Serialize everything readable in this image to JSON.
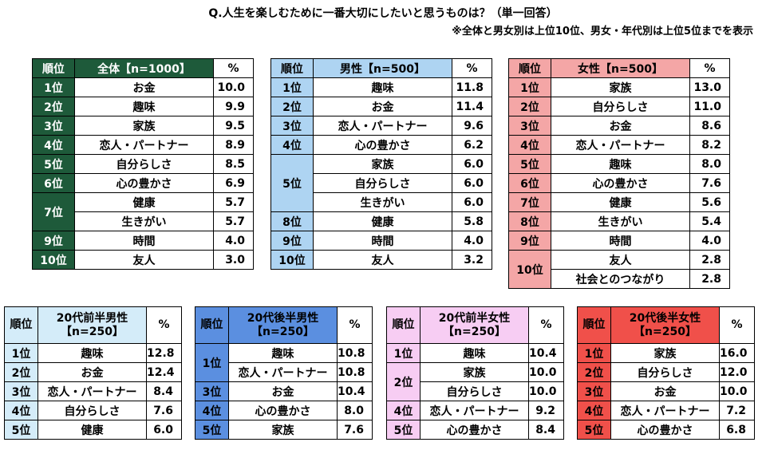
{
  "title": "Q.人生を楽しむために一番大切にしたいと思うものは？（単一回答）",
  "note": "※全体と男女別は上位10位、男女・年代別は上位5位までを表示",
  "rank_header": "順位",
  "pct_header": "%",
  "tables": {
    "all": {
      "header": "全体【n=1000】",
      "colors": {
        "head": "#1e5a3a",
        "rank": "#1e5a3a",
        "head_text": "#ffffff"
      },
      "rows": [
        {
          "rank": "1位",
          "item": "お金",
          "value": "10.0"
        },
        {
          "rank": "2位",
          "item": "趣味",
          "value": "9.9"
        },
        {
          "rank": "3位",
          "item": "家族",
          "value": "9.5"
        },
        {
          "rank": "4位",
          "item": "恋人・パートナー",
          "value": "8.9"
        },
        {
          "rank": "5位",
          "item": "自分らしさ",
          "value": "8.5"
        },
        {
          "rank": "6位",
          "item": "心の豊かさ",
          "value": "6.9"
        },
        {
          "rank": "7位",
          "item": "健康",
          "value": "5.7"
        },
        {
          "rank": "",
          "item": "生きがい",
          "value": "5.7"
        },
        {
          "rank": "9位",
          "item": "時間",
          "value": "4.0"
        },
        {
          "rank": "10位",
          "item": "友人",
          "value": "3.0"
        }
      ]
    },
    "male": {
      "header": "男性【n=500】",
      "colors": {
        "head": "#aed4f2",
        "rank": "#aed4f2",
        "head_text": "#000000"
      },
      "rows": [
        {
          "rank": "1位",
          "item": "趣味",
          "value": "11.8"
        },
        {
          "rank": "2位",
          "item": "お金",
          "value": "11.4"
        },
        {
          "rank": "3位",
          "item": "恋人・パートナー",
          "value": "9.6"
        },
        {
          "rank": "4位",
          "item": "心の豊かさ",
          "value": "6.2"
        },
        {
          "rank": "5位",
          "item": "家族",
          "value": "6.0"
        },
        {
          "rank": "",
          "item": "自分らしさ",
          "value": "6.0"
        },
        {
          "rank": "",
          "item": "生きがい",
          "value": "6.0"
        },
        {
          "rank": "8位",
          "item": "健康",
          "value": "5.8"
        },
        {
          "rank": "9位",
          "item": "時間",
          "value": "4.0"
        },
        {
          "rank": "10位",
          "item": "友人",
          "value": "3.2"
        }
      ]
    },
    "female": {
      "header": "女性【n=500】",
      "colors": {
        "head": "#f4a6a6",
        "rank": "#f4a6a6",
        "head_text": "#000000"
      },
      "rows": [
        {
          "rank": "1位",
          "item": "家族",
          "value": "13.0"
        },
        {
          "rank": "2位",
          "item": "自分らしさ",
          "value": "11.0"
        },
        {
          "rank": "3位",
          "item": "お金",
          "value": "8.6"
        },
        {
          "rank": "4位",
          "item": "恋人・パートナー",
          "value": "8.2"
        },
        {
          "rank": "5位",
          "item": "趣味",
          "value": "8.0"
        },
        {
          "rank": "6位",
          "item": "心の豊かさ",
          "value": "7.6"
        },
        {
          "rank": "7位",
          "item": "健康",
          "value": "5.6"
        },
        {
          "rank": "8位",
          "item": "生きがい",
          "value": "5.4"
        },
        {
          "rank": "9位",
          "item": "時間",
          "value": "4.0"
        },
        {
          "rank": "10位",
          "item": "友人",
          "value": "2.8"
        },
        {
          "rank": "",
          "item": "社会とのつながり",
          "value": "2.8"
        }
      ]
    },
    "m20e": {
      "header1": "20代前半男性",
      "header2": "【n=250】",
      "colors": {
        "head": "#d4ecf9",
        "rank": "#d4ecf9",
        "head_text": "#000000"
      },
      "rows": [
        {
          "rank": "1位",
          "item": "趣味",
          "value": "12.8"
        },
        {
          "rank": "2位",
          "item": "お金",
          "value": "12.4"
        },
        {
          "rank": "3位",
          "item": "恋人・パートナー",
          "value": "8.4"
        },
        {
          "rank": "4位",
          "item": "自分らしさ",
          "value": "7.6"
        },
        {
          "rank": "5位",
          "item": "健康",
          "value": "6.0"
        }
      ]
    },
    "m20l": {
      "header1": "20代後半男性",
      "header2": "【n=250】",
      "colors": {
        "head": "#5b8fe0",
        "rank": "#5b8fe0",
        "head_text": "#000000"
      },
      "rows": [
        {
          "rank": "1位",
          "item": "趣味",
          "value": "10.8"
        },
        {
          "rank": "",
          "item": "恋人・パートナー",
          "value": "10.8"
        },
        {
          "rank": "3位",
          "item": "お金",
          "value": "10.4"
        },
        {
          "rank": "4位",
          "item": "心の豊かさ",
          "value": "8.0"
        },
        {
          "rank": "5位",
          "item": "家族",
          "value": "7.6"
        }
      ]
    },
    "f20e": {
      "header1": "20代前半女性",
      "header2": "【n=250】",
      "colors": {
        "head": "#f7cdf3",
        "rank": "#f7cdf3",
        "head_text": "#000000"
      },
      "rows": [
        {
          "rank": "1位",
          "item": "趣味",
          "value": "10.4"
        },
        {
          "rank": "2位",
          "item": "家族",
          "value": "10.0"
        },
        {
          "rank": "",
          "item": "自分らしさ",
          "value": "10.0"
        },
        {
          "rank": "4位",
          "item": "恋人・パートナー",
          "value": "9.2"
        },
        {
          "rank": "5位",
          "item": "心の豊かさ",
          "value": "8.4"
        }
      ]
    },
    "f20l": {
      "header1": "20代後半女性",
      "header2": "【n=250】",
      "colors": {
        "head": "#f0504a",
        "rank": "#f0504a",
        "head_text": "#000000"
      },
      "rows": [
        {
          "rank": "1位",
          "item": "家族",
          "value": "16.0"
        },
        {
          "rank": "2位",
          "item": "自分らしさ",
          "value": "12.0"
        },
        {
          "rank": "3位",
          "item": "お金",
          "value": "10.0"
        },
        {
          "rank": "4位",
          "item": "恋人・パートナー",
          "value": "7.2"
        },
        {
          "rank": "5位",
          "item": "心の豊かさ",
          "value": "6.8"
        }
      ]
    }
  }
}
